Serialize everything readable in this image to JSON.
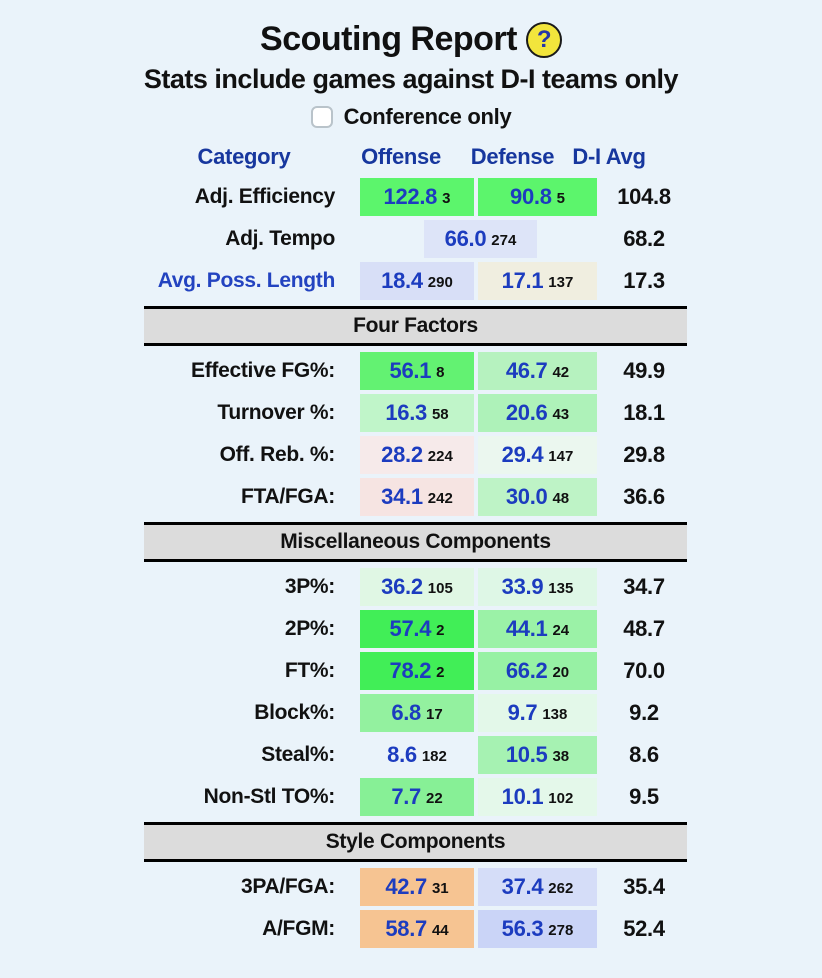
{
  "page": {
    "background": "#eaf3fa",
    "accent_blue": "#17379e",
    "value_blue": "#1c3cbf",
    "section_bar_gray": "#dcdcdc"
  },
  "header": {
    "title": "Scouting Report",
    "help_icon_glyph": "?",
    "subtitle": "Stats include games against D-I teams only",
    "conference_checkbox": {
      "label": "Conference only",
      "checked": false
    }
  },
  "columns": {
    "category": "Category",
    "offense": "Offense",
    "defense": "Defense",
    "avg": "D-I Avg"
  },
  "sections": [
    {
      "header": null,
      "rows": [
        {
          "label": "Adj. Efficiency",
          "link": false,
          "offense": {
            "value": "122.8",
            "rank": "3",
            "bg": "#5cf56c"
          },
          "defense": {
            "value": "90.8",
            "rank": "5",
            "bg": "#5cf56c"
          },
          "avg": "104.8"
        },
        {
          "label": "Adj. Tempo",
          "link": false,
          "combined": {
            "value": "66.0",
            "rank": "274",
            "bg": "#dde4f8"
          },
          "avg": "68.2"
        },
        {
          "label": "Avg. Poss. Length",
          "link": true,
          "offense": {
            "value": "18.4",
            "rank": "290",
            "bg": "#d8dff7"
          },
          "defense": {
            "value": "17.1",
            "rank": "137",
            "bg": "#f0eee0"
          },
          "avg": "17.3"
        }
      ]
    },
    {
      "header": "Four Factors",
      "rows": [
        {
          "label": "Effective FG%:",
          "link": false,
          "offense": {
            "value": "56.1",
            "rank": "8",
            "bg": "#63f272"
          },
          "defense": {
            "value": "46.7",
            "rank": "42",
            "bg": "#b6f2bf"
          },
          "avg": "49.9"
        },
        {
          "label": "Turnover %:",
          "link": false,
          "offense": {
            "value": "16.3",
            "rank": "58",
            "bg": "#c0f5c9"
          },
          "defense": {
            "value": "20.6",
            "rank": "43",
            "bg": "#aef2b9"
          },
          "avg": "18.1"
        },
        {
          "label": "Off. Reb. %:",
          "link": false,
          "offense": {
            "value": "28.2",
            "rank": "224",
            "bg": "#f6eaea"
          },
          "defense": {
            "value": "29.4",
            "rank": "147",
            "bg": "#ebf7ef"
          },
          "avg": "29.8"
        },
        {
          "label": "FTA/FGA:",
          "link": false,
          "offense": {
            "value": "34.1",
            "rank": "242",
            "bg": "#f6e4e2"
          },
          "defense": {
            "value": "30.0",
            "rank": "48",
            "bg": "#bef3c6"
          },
          "avg": "36.6"
        }
      ]
    },
    {
      "header": "Miscellaneous Components",
      "rows": [
        {
          "label": "3P%:",
          "link": false,
          "offense": {
            "value": "36.2",
            "rank": "105",
            "bg": "#e0f7e4"
          },
          "defense": {
            "value": "33.9",
            "rank": "135",
            "bg": "#def7e6"
          },
          "avg": "34.7"
        },
        {
          "label": "2P%:",
          "link": false,
          "offense": {
            "value": "57.4",
            "rank": "2",
            "bg": "#41ee57"
          },
          "defense": {
            "value": "44.1",
            "rank": "24",
            "bg": "#9bf2a7"
          },
          "avg": "48.7"
        },
        {
          "label": "FT%:",
          "link": false,
          "offense": {
            "value": "78.2",
            "rank": "2",
            "bg": "#41ee57"
          },
          "defense": {
            "value": "66.2",
            "rank": "20",
            "bg": "#97f1a4"
          },
          "avg": "70.0"
        },
        {
          "label": "Block%:",
          "link": false,
          "offense": {
            "value": "6.8",
            "rank": "17",
            "bg": "#93f19f"
          },
          "defense": {
            "value": "9.7",
            "rank": "138",
            "bg": "#e3f8e9"
          },
          "avg": "9.2"
        },
        {
          "label": "Steal%:",
          "link": false,
          "offense": {
            "value": "8.6",
            "rank": "182",
            "bg": "transparent"
          },
          "defense": {
            "value": "10.5",
            "rank": "38",
            "bg": "#a6f2b2"
          },
          "avg": "8.6"
        },
        {
          "label": "Non-Stl TO%:",
          "link": false,
          "offense": {
            "value": "7.7",
            "rank": "22",
            "bg": "#87f096"
          },
          "defense": {
            "value": "10.1",
            "rank": "102",
            "bg": "#e4f8ea"
          },
          "avg": "9.5"
        }
      ]
    },
    {
      "header": "Style Components",
      "rows": [
        {
          "label": "3PA/FGA:",
          "link": false,
          "offense": {
            "value": "42.7",
            "rank": "31",
            "bg": "#f6c492"
          },
          "defense": {
            "value": "37.4",
            "rank": "262",
            "bg": "#d5ddf8"
          },
          "avg": "35.4"
        },
        {
          "label": "A/FGM:",
          "link": false,
          "offense": {
            "value": "58.7",
            "rank": "44",
            "bg": "#f6c492"
          },
          "defense": {
            "value": "56.3",
            "rank": "278",
            "bg": "#cad4f7"
          },
          "avg": "52.4"
        }
      ]
    }
  ]
}
